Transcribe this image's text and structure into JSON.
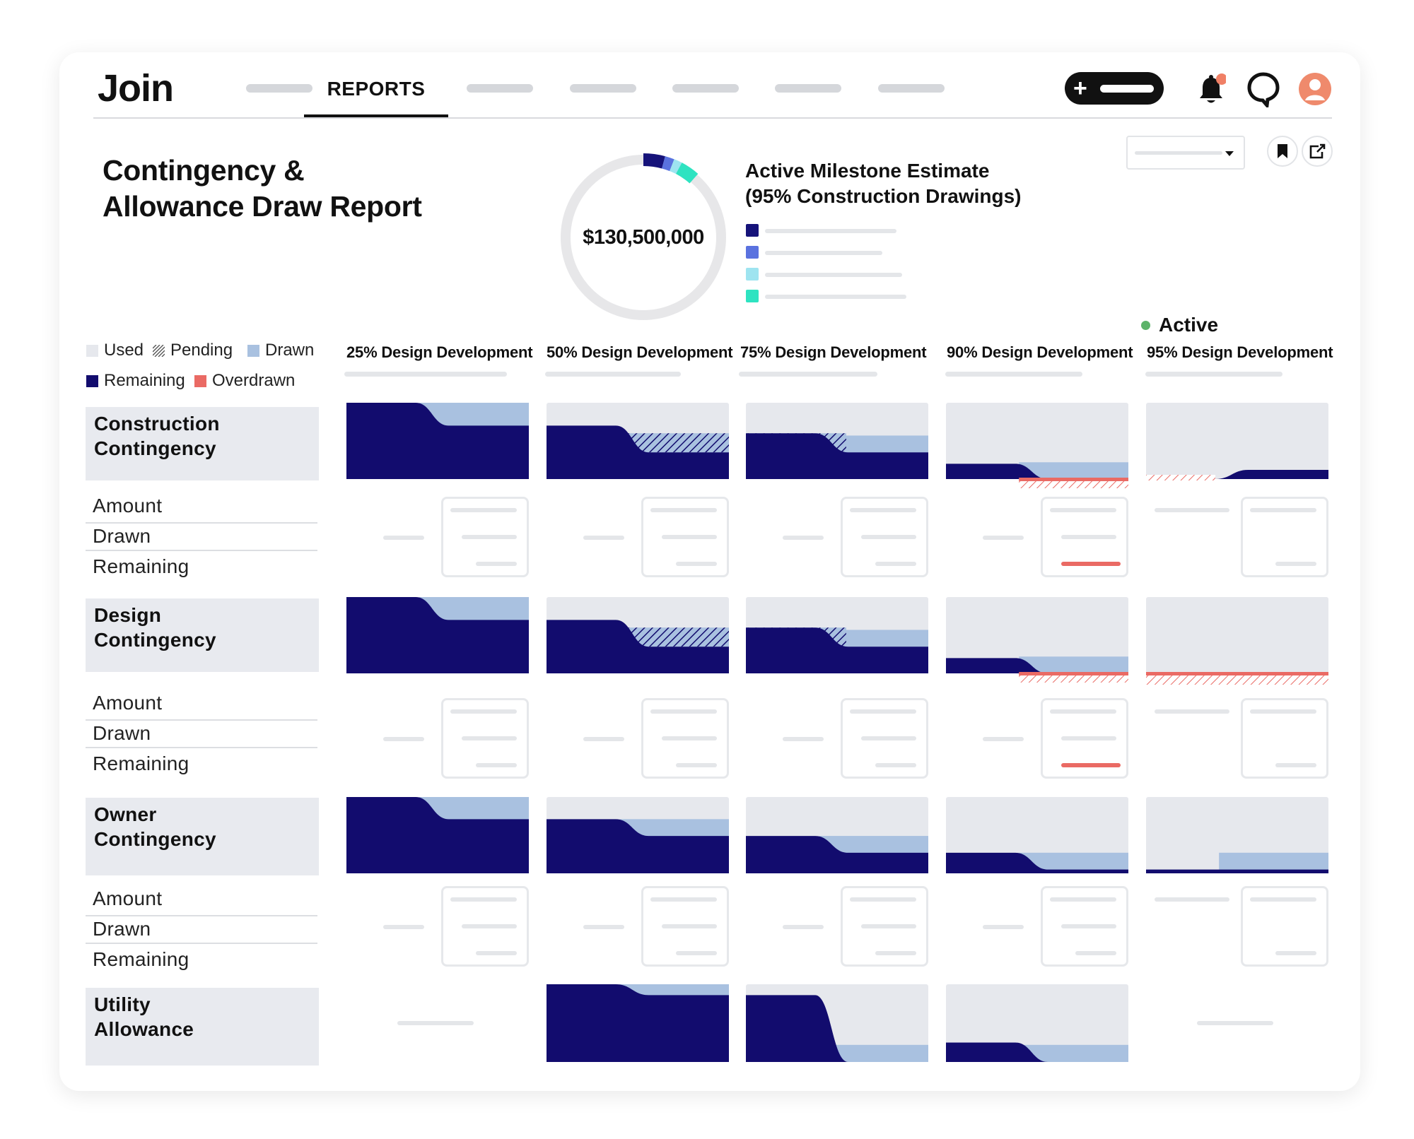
{
  "app": {
    "logo": "Join",
    "active_tab": "REPORTS"
  },
  "report": {
    "title_line1": "Contingency &",
    "title_line2": "Allowance Draw Report",
    "total": "$130,500,000",
    "milestone_line1": "Active Milestone Estimate",
    "milestone_line2": "(95% Construction Drawings)"
  },
  "colors": {
    "remaining": "#120c6e",
    "drawn": "#a9c1e0",
    "used": "#e6e8ed",
    "overdrawn": "#ea6a64",
    "donut_track": "#e7e7e9",
    "legend1": "#16137a",
    "legend2": "#5a72df",
    "legend3": "#9ee4f0",
    "legend4": "#2ee3c1"
  },
  "legend": {
    "used": "Used",
    "pending": "Pending",
    "drawn": "Drawn",
    "remaining": "Remaining",
    "overdrawn": "Overdrawn"
  },
  "status": {
    "active": "Active"
  },
  "milestones": [
    "25% Design Development",
    "50% Design Development",
    "75% Design Development",
    "90% Design Development",
    "95% Design Development"
  ],
  "sections": [
    {
      "line1": "Construction",
      "line2": "Contingency"
    },
    {
      "line1": "Design",
      "line2": "Contingency"
    },
    {
      "line1": "Owner",
      "line2": "Contingency"
    },
    {
      "line1": "Utility",
      "line2": "Allowance"
    }
  ],
  "row_labels": {
    "amount": "Amount",
    "drawn": "Drawn",
    "remaining": "Remaining"
  },
  "chart_data": {
    "type": "area",
    "description_units": "fraction of contingency",
    "milestones": [
      "25% Design Development",
      "50% Design Development",
      "75% Design Development",
      "90% Design Development",
      "95% Design Development"
    ],
    "series": [
      {
        "name": "Construction Contingency",
        "cells": [
          {
            "start": 1.0,
            "end": 0.7,
            "pending": 0
          },
          {
            "start": 0.7,
            "end": 0.35,
            "pending": 0.25
          },
          {
            "start": 0.6,
            "end": 0.35,
            "pending": 0.25
          },
          {
            "start": 0.2,
            "end": 0.0,
            "pending": 0,
            "overdrawn": 0.12
          },
          {
            "start": 0.0,
            "end": 0.12,
            "pending": 0,
            "overdrawn_pre": 0.06
          }
        ]
      },
      {
        "name": "Design Contingency",
        "cells": [
          {
            "start": 1.0,
            "end": 0.7,
            "pending": 0
          },
          {
            "start": 0.7,
            "end": 0.35,
            "pending": 0.25
          },
          {
            "start": 0.6,
            "end": 0.35,
            "pending": 0.25
          },
          {
            "start": 0.2,
            "end": 0.0,
            "pending": 0,
            "overdrawn": 0.12
          },
          {
            "start": 0.0,
            "end": 0.0,
            "pending": 0,
            "overdrawn_full": 0.18
          }
        ]
      },
      {
        "name": "Owner Contingency",
        "cells": [
          {
            "start": 1.0,
            "end": 0.71,
            "pending": 0
          },
          {
            "start": 0.71,
            "end": 0.49,
            "pending": 0
          },
          {
            "start": 0.49,
            "end": 0.27,
            "pending": 0
          },
          {
            "start": 0.27,
            "end": 0.05,
            "pending": 0
          },
          {
            "start": 0.05,
            "end": 0.05,
            "pending": 0
          }
        ]
      },
      {
        "name": "Utility Allowance",
        "cells": [
          null,
          {
            "start": 1.0,
            "end": 0.86,
            "pending": 0
          },
          {
            "start": 0.86,
            "end": 0.0,
            "pending": 0
          },
          {
            "start": 0.25,
            "end": 0.0,
            "pending": 0
          },
          null
        ]
      }
    ]
  }
}
